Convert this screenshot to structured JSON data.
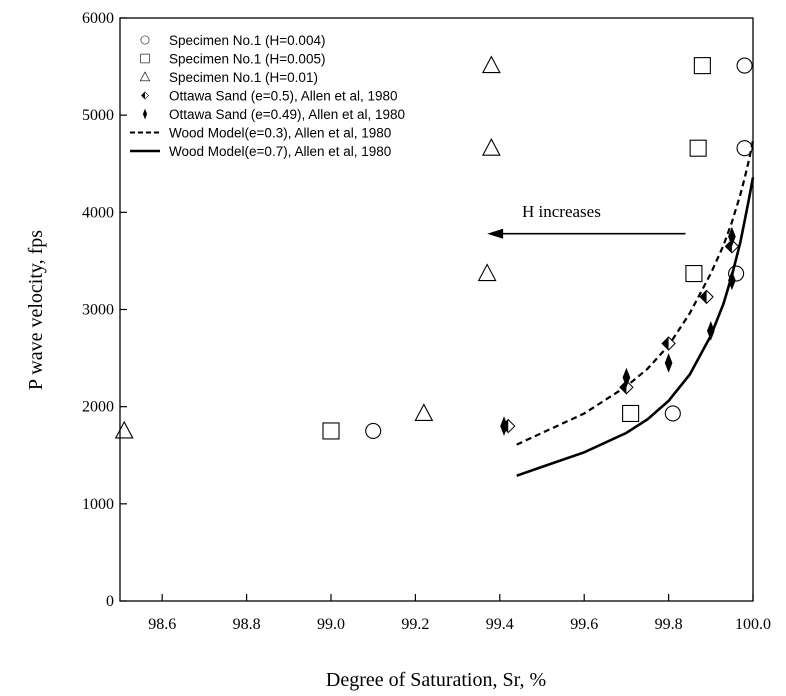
{
  "chart_data": {
    "type": "scatter",
    "title": "",
    "xlabel": "Degree of Saturation, Sr, %",
    "ylabel": "P wave velocity, fps",
    "xlim": [
      98.5,
      100.0
    ],
    "ylim": [
      0,
      6000
    ],
    "xticks": [
      98.6,
      98.8,
      99.0,
      99.2,
      99.4,
      99.6,
      99.8,
      100.0
    ],
    "xtick_labels": [
      "98.6",
      "98.8",
      "99.0",
      "99.2",
      "99.4",
      "99.6",
      "99.8",
      "100.0"
    ],
    "yticks": [
      0,
      1000,
      2000,
      3000,
      4000,
      5000,
      6000
    ],
    "ytick_labels": [
      "0",
      "1000",
      "2000",
      "3000",
      "4000",
      "5000",
      "6000"
    ],
    "grid": false,
    "legend_position": "top-left",
    "annotation": {
      "text": "H increases",
      "arrow_from": [
        99.84,
        3780
      ],
      "arrow_to": [
        99.37,
        3780
      ]
    },
    "series": [
      {
        "name": "Specimen No.1 (H=0.004)",
        "marker": "circle",
        "line": "none",
        "x": [
          99.1,
          99.81,
          99.96,
          99.98,
          99.98
        ],
        "y": [
          1750,
          1930,
          3370,
          4660,
          5510
        ]
      },
      {
        "name": "Specimen No.1 (H=0.005)",
        "marker": "square",
        "line": "none",
        "x": [
          99.0,
          99.71,
          99.86,
          99.87,
          99.88
        ],
        "y": [
          1750,
          1930,
          3370,
          4660,
          5510
        ]
      },
      {
        "name": "Specimen No.1 (H=0.01)",
        "marker": "triangle",
        "line": "none",
        "x": [
          98.51,
          99.22,
          99.37,
          99.38,
          99.38
        ],
        "y": [
          1750,
          1930,
          3370,
          4660,
          5510
        ]
      },
      {
        "name": "Ottawa Sand (e=0.5), Allen et al, 1980",
        "marker": "left-diamond",
        "line": "none",
        "x": [
          99.42,
          99.7,
          99.8,
          99.89,
          99.95
        ],
        "y": [
          1800,
          2200,
          2650,
          3130,
          3650
        ]
      },
      {
        "name": "Ottawa Sand (e=0.49), Allen et al, 1980",
        "marker": "diamond",
        "line": "none",
        "x": [
          99.41,
          99.7,
          99.8,
          99.9,
          99.95,
          99.95
        ],
        "y": [
          1800,
          2300,
          2450,
          2780,
          3300,
          3750
        ]
      },
      {
        "name": "Wood Model(e=0.3), Allen et al, 1980",
        "marker": "none",
        "line": "dashed",
        "x": [
          99.44,
          99.5,
          99.6,
          99.7,
          99.75,
          99.8,
          99.85,
          99.9,
          99.93,
          99.95,
          99.97,
          99.98,
          99.99,
          100.0
        ],
        "y": [
          1610,
          1730,
          1930,
          2210,
          2390,
          2630,
          2960,
          3370,
          3660,
          3900,
          4180,
          4350,
          4530,
          4740
        ]
      },
      {
        "name": "Wood Model(e=0.7), Allen et al, 1980",
        "marker": "none",
        "line": "solid",
        "x": [
          99.44,
          99.5,
          99.6,
          99.7,
          99.75,
          99.8,
          99.85,
          99.9,
          99.93,
          99.95,
          99.97,
          99.98,
          99.99,
          100.0
        ],
        "y": [
          1290,
          1380,
          1530,
          1730,
          1870,
          2060,
          2330,
          2730,
          3060,
          3350,
          3690,
          3910,
          4130,
          4360
        ]
      }
    ]
  }
}
